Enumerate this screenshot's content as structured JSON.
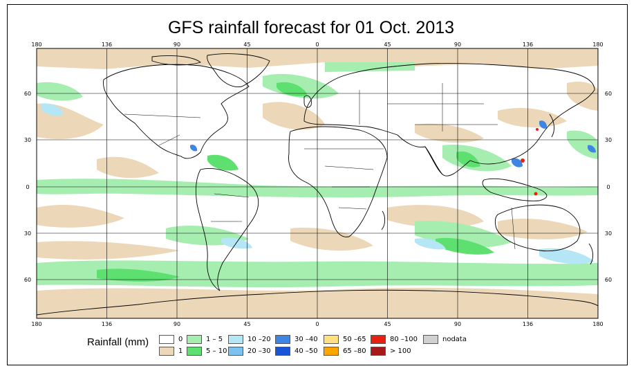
{
  "title": "GFS rainfall forecast for 01 Oct. 2013",
  "lon_ticks": [
    "180",
    "136",
    "90",
    "45",
    "0",
    "45",
    "90",
    "136",
    "180"
  ],
  "lat_ticks": [
    "60",
    "30",
    "0",
    "30",
    "60"
  ],
  "legend": {
    "title": "Rainfall (mm)",
    "items": [
      {
        "label": "0",
        "color": "#ffffff"
      },
      {
        "label": "1",
        "color": "#ecd8b8"
      },
      {
        "label": "1 – 5",
        "color": "#a6eeb0"
      },
      {
        "label": "5 – 10",
        "color": "#5ee070"
      },
      {
        "label": "10 –20",
        "color": "#b4e6f6"
      },
      {
        "label": "20 –30",
        "color": "#7cc2f0"
      },
      {
        "label": "30 –40",
        "color": "#3f86e4"
      },
      {
        "label": "40 –50",
        "color": "#1a54d8"
      },
      {
        "label": "50 –65",
        "color": "#ffe080"
      },
      {
        "label": "65 –80",
        "color": "#ffa500"
      },
      {
        "label": "80 –100",
        "color": "#e82010"
      },
      {
        "label": "> 100",
        "color": "#a81818"
      },
      {
        "label": "nodata",
        "color": "#d0d0d0"
      }
    ]
  }
}
